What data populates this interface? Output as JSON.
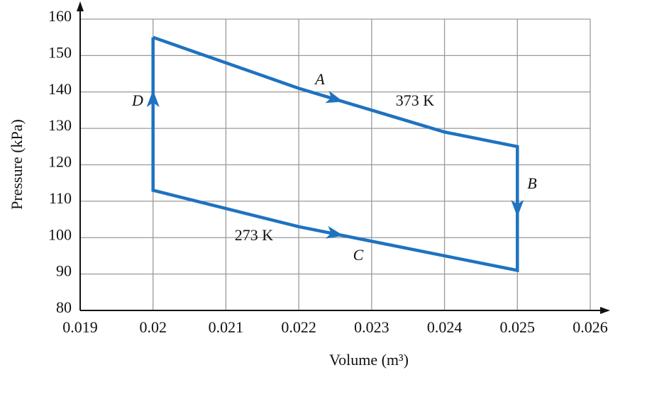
{
  "chart_data": {
    "type": "line",
    "x_label": "Volume (m³)",
    "y_label": "Pressure (kPa)",
    "x": [
      0.02,
      0.021,
      0.022,
      0.023,
      0.024,
      0.025,
      0.025,
      0.024,
      0.023,
      0.022,
      0.021,
      0.02,
      0.02
    ],
    "series": [
      {
        "color": "#1f72c0",
        "values": [
          155,
          148,
          141,
          135,
          129,
          125,
          91,
          95,
          99,
          103,
          108,
          113,
          155
        ]
      }
    ],
    "xlim": [
      0.019,
      0.026
    ],
    "xticks": [
      0.019,
      0.02,
      0.021,
      0.022,
      0.023,
      0.024,
      0.025,
      0.026
    ],
    "ylim": [
      80,
      160
    ],
    "yticks": [
      80,
      90,
      100,
      110,
      120,
      130,
      140,
      150,
      160
    ],
    "grid": true,
    "annotations": [
      "A",
      "373 K",
      "B",
      "C",
      "273 K",
      "D"
    ]
  }
}
